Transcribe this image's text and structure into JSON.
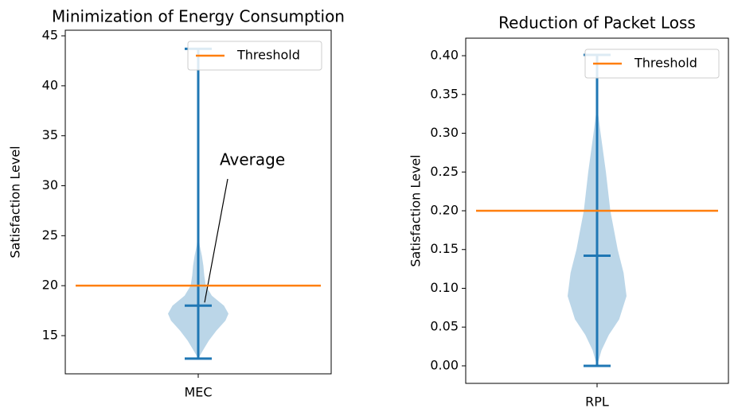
{
  "chart_data": [
    {
      "type": "violin",
      "title": "Minimization of Energy Consumption",
      "ylabel": "Satisfaction Level",
      "categories": [
        "MEC"
      ],
      "color": "#1f77b4",
      "violins": [
        {
          "min": 12.7,
          "max": 43.7,
          "mean": 18,
          "profile": {
            "y": [
              12.7,
              13.5,
              14.5,
              15.5,
              16.5,
              17.2,
              18,
              19,
              20,
              21,
              22,
              23,
              24,
              25,
              27,
              43.7
            ],
            "density": [
              0,
              0.15,
              0.35,
              0.6,
              0.9,
              1.0,
              0.85,
              0.45,
              0.25,
              0.2,
              0.17,
              0.12,
              0.05,
              0.02,
              0.01,
              0
            ]
          }
        }
      ],
      "threshold": {
        "name": "Threshold",
        "value": 20,
        "color": "#ff7f0e"
      },
      "annotation": "Average",
      "legend": "upper right",
      "ylim": [
        11.18,
        45.56
      ],
      "yticks": [
        15,
        20,
        25,
        30,
        35,
        40,
        45
      ]
    },
    {
      "type": "violin",
      "title": "Reduction of Packet Loss",
      "ylabel": "Satisfaction Level",
      "categories": [
        "RPL"
      ],
      "color": "#1f77b4",
      "violins": [
        {
          "min": 0.0,
          "max": 0.401,
          "mean": 0.142,
          "profile": {
            "y": [
              0,
              0.02,
              0.04,
              0.06,
              0.09,
              0.12,
              0.15,
              0.2,
              0.25,
              0.3,
              0.33,
              0.401
            ],
            "density": [
              0,
              0.15,
              0.4,
              0.75,
              1.0,
              0.9,
              0.7,
              0.45,
              0.3,
              0.12,
              0.02,
              0
            ]
          }
        }
      ],
      "threshold": {
        "name": "Threshold",
        "value": 0.2,
        "color": "#ff7f0e"
      },
      "legend": "upper right",
      "ylim": [
        -0.0226,
        0.4226
      ],
      "yticks": [
        {
          "value": 0,
          "label": "0.00"
        },
        {
          "value": 0.05,
          "label": "0.05"
        },
        {
          "value": 0.1,
          "label": "0.10"
        },
        {
          "value": 0.15,
          "label": "0.15"
        },
        {
          "value": 0.2,
          "label": "0.20"
        },
        {
          "value": 0.25,
          "label": "0.25"
        },
        {
          "value": 0.3,
          "label": "0.30"
        },
        {
          "value": 0.35,
          "label": "0.35"
        },
        {
          "value": 0.4,
          "label": "0.40"
        }
      ]
    }
  ]
}
